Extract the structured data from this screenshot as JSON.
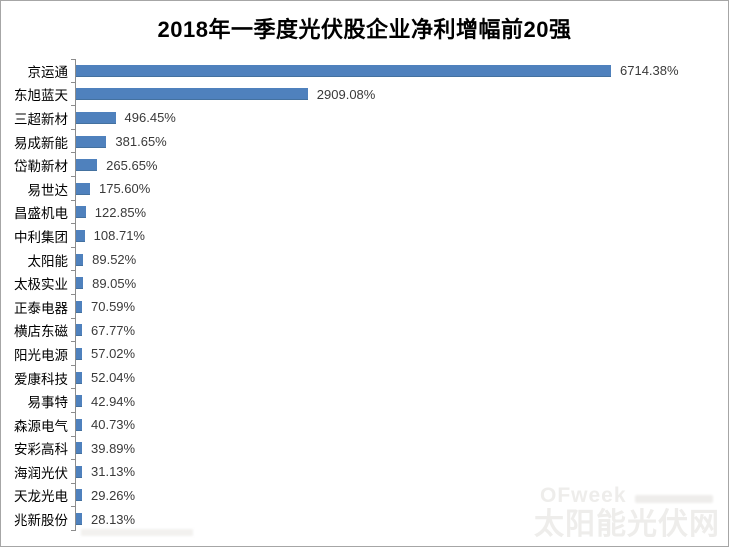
{
  "title": "2018年一季度光伏股企业净利增幅前20强",
  "watermark": {
    "brand": "OFweek",
    "site": "太阳能光伏网"
  },
  "colors": {
    "bar": "#4f81bd",
    "axis": "#8c8c8c",
    "frame": "#a6a6a6",
    "label_text": "#000000",
    "value_text": "#3a3a3a",
    "watermark_text": "#eeedeb"
  },
  "chart_data": {
    "type": "bar",
    "orientation": "horizontal",
    "title": "2018年一季度光伏股企业净利增幅前20强",
    "categories": [
      "京运通",
      "东旭蓝天",
      "三超新材",
      "易成新能",
      "岱勒新材",
      "易世达",
      "昌盛机电",
      "中利集团",
      "太阳能",
      "太极实业",
      "正泰电器",
      "横店东磁",
      "阳光电源",
      "爱康科技",
      "易事特",
      "森源电气",
      "安彩高科",
      "海润光伏",
      "天龙光电",
      "兆新股份"
    ],
    "values": [
      6714.38,
      2909.08,
      496.45,
      381.65,
      265.65,
      175.6,
      122.85,
      108.71,
      89.52,
      89.05,
      70.59,
      67.77,
      57.02,
      52.04,
      42.94,
      40.73,
      39.89,
      31.13,
      29.26,
      28.13
    ],
    "value_labels": [
      "6714.38%",
      "2909.08%",
      "496.45%",
      "381.65%",
      "265.65%",
      "175.60%",
      "122.85%",
      "108.71%",
      "89.52%",
      "89.05%",
      "70.59%",
      "67.77%",
      "57.02%",
      "52.04%",
      "42.94%",
      "40.73%",
      "39.89%",
      "31.13%",
      "29.26%",
      "28.13%"
    ],
    "unit": "%",
    "xlim": [
      0,
      6714.38
    ],
    "grid": false,
    "legend": false,
    "value_labels_position": "right-of-bar"
  }
}
